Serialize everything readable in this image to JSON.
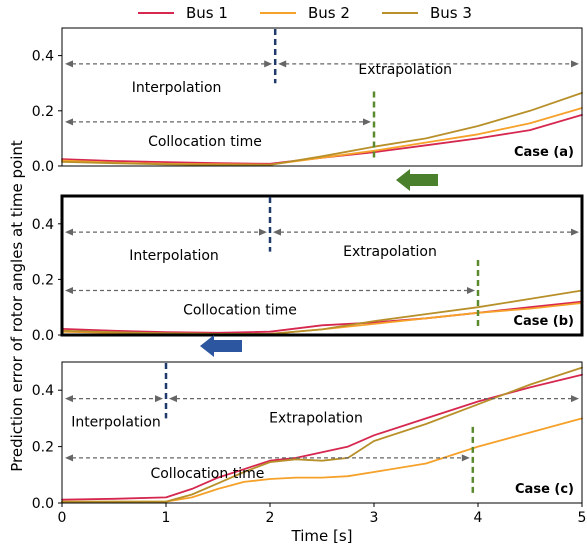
{
  "legend": {
    "placement": "top-center",
    "items": [
      {
        "label": "Bus 1",
        "color": "#d6274f"
      },
      {
        "label": "Bus 2",
        "color": "#f5a12a"
      },
      {
        "label": "Bus 3",
        "color": "#b8902a"
      }
    ]
  },
  "xlabel": "Time [s]",
  "ylabel": "Prediction error of rotor angles at time point",
  "arrows": [
    {
      "direction": "left",
      "color": "#4a7f2c"
    },
    {
      "direction": "left",
      "color": "#2c56a0"
    }
  ],
  "chart_data": [
    {
      "type": "line",
      "case_label": "Case (a)",
      "highlighted": false,
      "xlim": [
        0,
        5
      ],
      "ylim": [
        0,
        0.5
      ],
      "yticks": [
        "0.0",
        "0.2",
        "0.4"
      ],
      "xticks": [],
      "grid": false,
      "split_time": 2.05,
      "collocation_end": 3.0,
      "annotations": {
        "interpolation": "Interpolation",
        "extrapolation": "Extrapolation",
        "collocation": "Collocation time"
      },
      "series": [
        {
          "name": "Bus 1",
          "x": [
            0,
            0.5,
            1,
            1.5,
            2,
            2.5,
            3,
            3.5,
            4,
            4.5,
            5
          ],
          "y": [
            0.025,
            0.018,
            0.014,
            0.01,
            0.008,
            0.03,
            0.05,
            0.075,
            0.1,
            0.13,
            0.185
          ]
        },
        {
          "name": "Bus 2",
          "x": [
            0,
            0.5,
            1,
            1.5,
            2,
            2.5,
            3,
            3.5,
            4,
            4.5,
            5
          ],
          "y": [
            0.02,
            0.012,
            0.008,
            0.006,
            0.005,
            0.03,
            0.055,
            0.085,
            0.115,
            0.155,
            0.21
          ]
        },
        {
          "name": "Bus 3",
          "x": [
            0,
            0.5,
            1,
            1.5,
            2,
            2.5,
            3,
            3.5,
            4,
            4.5,
            5
          ],
          "y": [
            0.015,
            0.01,
            0.006,
            0.004,
            0.004,
            0.035,
            0.07,
            0.1,
            0.145,
            0.2,
            0.265
          ]
        }
      ]
    },
    {
      "type": "line",
      "case_label": "Case (b)",
      "highlighted": true,
      "xlim": [
        0,
        5
      ],
      "ylim": [
        0,
        0.5
      ],
      "yticks": [
        "0.0",
        "0.2",
        "0.4"
      ],
      "xticks": [],
      "grid": false,
      "split_time": 2.0,
      "collocation_end": 4.0,
      "annotations": {
        "interpolation": "Interpolation",
        "extrapolation": "Extrapolation",
        "collocation": "Collocation time"
      },
      "series": [
        {
          "name": "Bus 1",
          "x": [
            0,
            0.5,
            1,
            1.5,
            2,
            2.5,
            3,
            3.5,
            4,
            4.5,
            5
          ],
          "y": [
            0.022,
            0.015,
            0.01,
            0.008,
            0.012,
            0.035,
            0.045,
            0.06,
            0.08,
            0.1,
            0.12
          ]
        },
        {
          "name": "Bus 2",
          "x": [
            0,
            0.5,
            1,
            1.5,
            2,
            2.5,
            3,
            3.5,
            4,
            4.5,
            5
          ],
          "y": [
            0.012,
            0.008,
            0.005,
            0.004,
            0.004,
            0.02,
            0.04,
            0.06,
            0.08,
            0.095,
            0.115
          ]
        },
        {
          "name": "Bus 3",
          "x": [
            0,
            0.5,
            1,
            1.5,
            2,
            2.5,
            3,
            3.5,
            4,
            4.5,
            5
          ],
          "y": [
            0.015,
            0.01,
            0.006,
            0.004,
            0.004,
            0.02,
            0.05,
            0.075,
            0.1,
            0.13,
            0.16
          ]
        }
      ]
    },
    {
      "type": "line",
      "case_label": "Case (c)",
      "highlighted": false,
      "xlim": [
        0,
        5
      ],
      "ylim": [
        0,
        0.5
      ],
      "yticks": [
        "0.0",
        "0.2",
        "0.4"
      ],
      "xticks": [
        "0",
        "1",
        "2",
        "3",
        "4",
        "5"
      ],
      "grid": false,
      "split_time": 1.0,
      "collocation_end": 3.95,
      "annotations": {
        "interpolation": "Interpolation",
        "extrapolation": "Extrapolation",
        "collocation": "Collocation time"
      },
      "series": [
        {
          "name": "Bus 1",
          "x": [
            0,
            0.5,
            1,
            1.25,
            1.5,
            1.75,
            2,
            2.25,
            2.5,
            2.75,
            3,
            3.5,
            4,
            4.5,
            5
          ],
          "y": [
            0.012,
            0.015,
            0.02,
            0.05,
            0.09,
            0.12,
            0.15,
            0.16,
            0.18,
            0.2,
            0.24,
            0.3,
            0.36,
            0.41,
            0.455
          ]
        },
        {
          "name": "Bus 2",
          "x": [
            0,
            0.5,
            1,
            1.25,
            1.5,
            1.75,
            2,
            2.25,
            2.5,
            2.75,
            3,
            3.5,
            4,
            4.5,
            5
          ],
          "y": [
            0.005,
            0.005,
            0.005,
            0.02,
            0.05,
            0.075,
            0.085,
            0.09,
            0.09,
            0.095,
            0.11,
            0.14,
            0.2,
            0.25,
            0.3
          ]
        },
        {
          "name": "Bus 3",
          "x": [
            0,
            0.5,
            1,
            1.25,
            1.5,
            1.75,
            2,
            2.25,
            2.5,
            2.75,
            3,
            3.5,
            4,
            4.5,
            5
          ],
          "y": [
            0.005,
            0.005,
            0.005,
            0.03,
            0.07,
            0.11,
            0.145,
            0.155,
            0.15,
            0.16,
            0.22,
            0.28,
            0.35,
            0.42,
            0.48
          ]
        }
      ]
    }
  ]
}
